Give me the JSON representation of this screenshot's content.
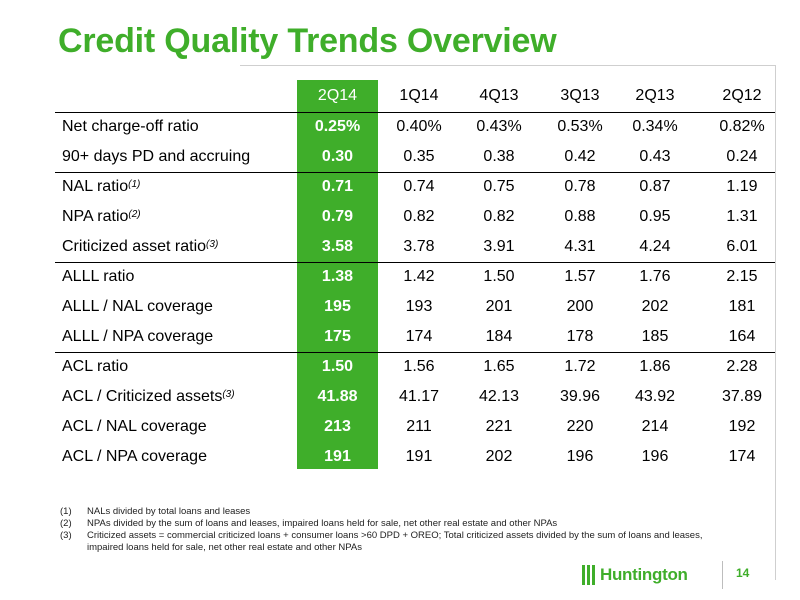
{
  "title": "Credit Quality Trends Overview",
  "table": {
    "columns": [
      "2Q14",
      "1Q14",
      "4Q13",
      "3Q13",
      "2Q13",
      "2Q12"
    ],
    "rows": [
      {
        "label": "Net charge-off ratio",
        "sup": "",
        "values": [
          "0.25%",
          "0.40%",
          "0.43%",
          "0.53%",
          "0.34%",
          "0.82%"
        ]
      },
      {
        "label": "90+ days PD and accruing",
        "sup": "",
        "values": [
          "0.30",
          "0.35",
          "0.38",
          "0.42",
          "0.43",
          "0.24"
        ]
      },
      {
        "label": "NAL ratio",
        "sup": "(1)",
        "values": [
          "0.71",
          "0.74",
          "0.75",
          "0.78",
          "0.87",
          "1.19"
        ]
      },
      {
        "label": "NPA ratio",
        "sup": "(2)",
        "values": [
          "0.79",
          "0.82",
          "0.82",
          "0.88",
          "0.95",
          "1.31"
        ]
      },
      {
        "label": "Criticized asset ratio",
        "sup": "(3)",
        "values": [
          "3.58",
          "3.78",
          "3.91",
          "4.31",
          "4.24",
          "6.01"
        ]
      },
      {
        "label": "ALLL ratio",
        "sup": "",
        "values": [
          "1.38",
          "1.42",
          "1.50",
          "1.57",
          "1.76",
          "2.15"
        ]
      },
      {
        "label": "ALLL / NAL coverage",
        "sup": "",
        "values": [
          "195",
          "193",
          "201",
          "200",
          "202",
          "181"
        ]
      },
      {
        "label": "ALLL / NPA coverage",
        "sup": "",
        "values": [
          "175",
          "174",
          "184",
          "178",
          "185",
          "164"
        ]
      },
      {
        "label": "ACL ratio",
        "sup": "",
        "values": [
          "1.50",
          "1.56",
          "1.65",
          "1.72",
          "1.86",
          "2.28"
        ]
      },
      {
        "label": "ACL / Criticized assets",
        "sup": "(3)",
        "values": [
          "41.88",
          "41.17",
          "42.13",
          "39.96",
          "43.92",
          "37.89"
        ]
      },
      {
        "label": "ACL / NAL coverage",
        "sup": "",
        "values": [
          "213",
          "211",
          "221",
          "220",
          "214",
          "192"
        ]
      },
      {
        "label": "ACL / NPA coverage",
        "sup": "",
        "values": [
          "191",
          "191",
          "202",
          "196",
          "196",
          "174"
        ]
      }
    ]
  },
  "footnotes": [
    {
      "num": "(1)",
      "text": "NALs divided by total loans and leases"
    },
    {
      "num": "(2)",
      "text": "NPAs divided by the sum of loans and leases, impaired loans held for sale, net other real estate and other NPAs"
    },
    {
      "num": "(3)",
      "text": "Criticized assets = commercial criticized loans + consumer loans >60 DPD + OREO; Total criticized assets divided by the sum of loans and leases, impaired loans held for sale, net other real estate and other NPAs"
    }
  ],
  "logo_text": "Huntington",
  "page_number": "14",
  "colors": {
    "accent": "#3fae2a",
    "highlight_text": "#ffffff"
  }
}
